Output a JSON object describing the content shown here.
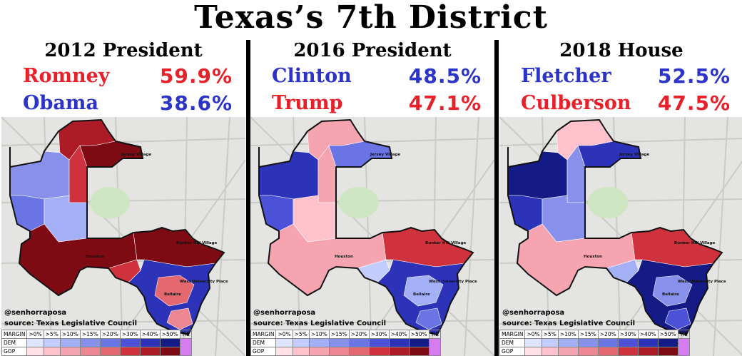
{
  "title": "Texas’s 7th District",
  "credit": {
    "handle": "@senhorraposa",
    "source": "source: Texas Legislative Council"
  },
  "legend": {
    "header_label": "MARGIN",
    "dem_label": "DEM",
    "gop_label": "GOP",
    "buckets": [
      ">0%",
      ">5%",
      ">10%",
      ">15%",
      ">20%",
      ">30%",
      ">40%",
      ">50%"
    ],
    "tie_label": "TIE",
    "dem_colors": [
      "#dfe4ff",
      "#c3ccff",
      "#a4b0f5",
      "#8791ec",
      "#6a74e4",
      "#4b52d7",
      "#2d33b8",
      "#141a86"
    ],
    "gop_colors": [
      "#ffe0e6",
      "#ffc2cd",
      "#f5a4b0",
      "#ec8691",
      "#e4686f",
      "#d0323d",
      "#ad1c26",
      "#7e0a14"
    ],
    "tie_color": "#d47cf0"
  },
  "map_labels": {
    "west_univ": "West University Place",
    "bellaire": "Bellaire",
    "houston": "Houston",
    "bunker_hill": "Bunker Hill Village",
    "jersey": "Jersey Village"
  },
  "panels": [
    {
      "heading": "2012 President",
      "candidates": [
        {
          "name": "Romney",
          "pct": "59.9%",
          "color": "#e8202a"
        },
        {
          "name": "Obama",
          "pct": "38.6%",
          "color": "#2b33c9"
        }
      ],
      "winner_party": "gop"
    },
    {
      "heading": "2016 President",
      "candidates": [
        {
          "name": "Clinton",
          "pct": "48.5%",
          "color": "#2b33c9"
        },
        {
          "name": "Trump",
          "pct": "47.1%",
          "color": "#e8202a"
        }
      ],
      "winner_party": "mixed"
    },
    {
      "heading": "2018 House",
      "candidates": [
        {
          "name": "Fletcher",
          "pct": "52.5%",
          "color": "#2b33c9"
        },
        {
          "name": "Culberson",
          "pct": "47.5%",
          "color": "#e8202a"
        }
      ],
      "winner_party": "dem"
    }
  ]
}
